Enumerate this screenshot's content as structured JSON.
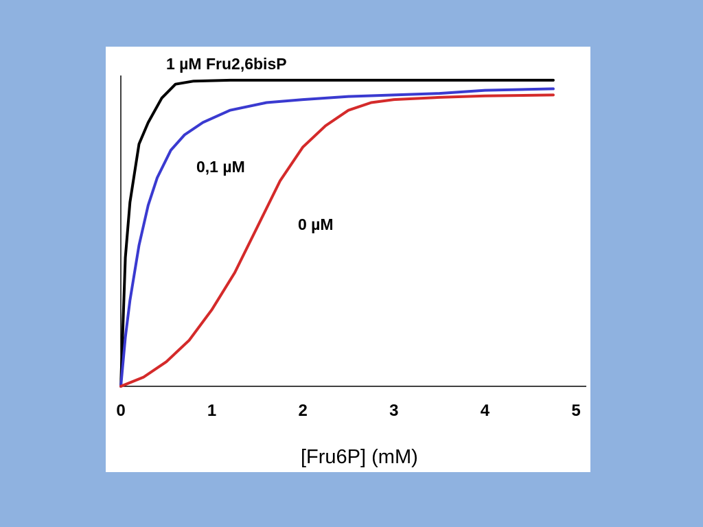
{
  "chart_data": {
    "type": "line",
    "xlabel": "[Fru6P] (mM)",
    "ylabel": "",
    "title": "",
    "xlim": [
      0,
      5
    ],
    "ylim": [
      0,
      1
    ],
    "x_ticks": [
      "0",
      "1",
      "2",
      "3",
      "4",
      "5"
    ],
    "grid": false,
    "legend": "none",
    "series": [
      {
        "name": "1 µM Fru2,6bisP",
        "color": "#000000",
        "x": [
          0,
          0.05,
          0.1,
          0.2,
          0.3,
          0.45,
          0.6,
          0.8,
          1.2,
          2,
          3,
          4,
          4.75
        ],
        "y": [
          0,
          0.42,
          0.6,
          0.79,
          0.86,
          0.94,
          0.985,
          0.995,
          0.998,
          0.998,
          0.998,
          0.998,
          0.998
        ]
      },
      {
        "name": "0,1 µM",
        "color": "#3a3ad0",
        "x": [
          0,
          0.05,
          0.1,
          0.2,
          0.3,
          0.4,
          0.55,
          0.7,
          0.9,
          1.2,
          1.6,
          2,
          2.5,
          3,
          3.5,
          4,
          4.75
        ],
        "y": [
          0,
          0.16,
          0.28,
          0.46,
          0.59,
          0.68,
          0.77,
          0.82,
          0.86,
          0.9,
          0.925,
          0.935,
          0.945,
          0.95,
          0.955,
          0.965,
          0.97
        ]
      },
      {
        "name": "0 µM",
        "color": "#d42a2a",
        "x": [
          0,
          0.25,
          0.5,
          0.75,
          1,
          1.25,
          1.5,
          1.75,
          2,
          2.25,
          2.5,
          2.75,
          3,
          3.5,
          4,
          4.75
        ],
        "y": [
          0,
          0.03,
          0.08,
          0.15,
          0.25,
          0.37,
          0.52,
          0.67,
          0.78,
          0.85,
          0.9,
          0.925,
          0.935,
          0.942,
          0.947,
          0.95
        ]
      }
    ],
    "annotations": [
      {
        "text": "1 µM Fru2,6bisP",
        "series": 0
      },
      {
        "text": "0,1 µM",
        "series": 1
      },
      {
        "text": "0 µM",
        "series": 2
      }
    ]
  }
}
